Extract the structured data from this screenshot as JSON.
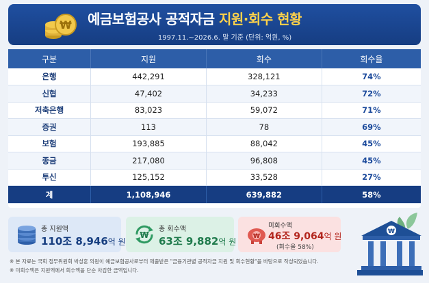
{
  "header": {
    "title_main": "예금보험공사 공적자금 ",
    "title_highlight": "지원·회수 현황",
    "subtitle": "1997.11.~2026.6. 말 기준 (단위: 억원, %)"
  },
  "table": {
    "columns": [
      "구분",
      "지원",
      "회수",
      "회수율"
    ],
    "rows": [
      {
        "name": "은행",
        "support": "442,291",
        "recovery": "328,121",
        "rate": "74%"
      },
      {
        "name": "신협",
        "support": "47,402",
        "recovery": "34,233",
        "rate": "72%"
      },
      {
        "name": "저축은행",
        "support": "83,023",
        "recovery": "59,072",
        "rate": "71%"
      },
      {
        "name": "증권",
        "support": "113",
        "recovery": "78",
        "rate": "69%"
      },
      {
        "name": "보험",
        "support": "193,885",
        "recovery": "88,042",
        "rate": "45%"
      },
      {
        "name": "종금",
        "support": "217,080",
        "recovery": "96,808",
        "rate": "45%"
      },
      {
        "name": "투신",
        "support": "125,152",
        "recovery": "33,528",
        "rate": "27%"
      }
    ],
    "total": {
      "name": "계",
      "support": "1,108,946",
      "recovery": "639,882",
      "rate": "58%"
    }
  },
  "summary": {
    "total_support": {
      "label": "총 지원액",
      "value": "110조 8,946",
      "unit": "억 원",
      "icon": "coin-stack-icon"
    },
    "total_recovery": {
      "label": "총 회수액",
      "value": "63조 9,882",
      "unit": "억 원",
      "icon": "recycle-won-icon"
    },
    "unrecovered": {
      "label": "미회수액",
      "value": "46조 9,064",
      "unit": "억 원",
      "note": "(회수율 58%)",
      "icon": "piggy-bank-icon"
    }
  },
  "notes": [
    "※ 본 자료는 국회 정무위원회 박성훈 의원이 예금보험공사로부터 제출받은 \"금융기관별 공적자금 지원 및 회수현황\"을 바탕으로 작성되었습니다.",
    "※ 미회수액은 지원액에서 회수액을 단순 차감한 금액입니다."
  ],
  "colors": {
    "navy": "#163d82",
    "header_blue": "#2d5ea8",
    "highlight_yellow": "#ffd24a",
    "recovery_green": "#1f7a4c",
    "unrecovered_red": "#b3261e"
  }
}
